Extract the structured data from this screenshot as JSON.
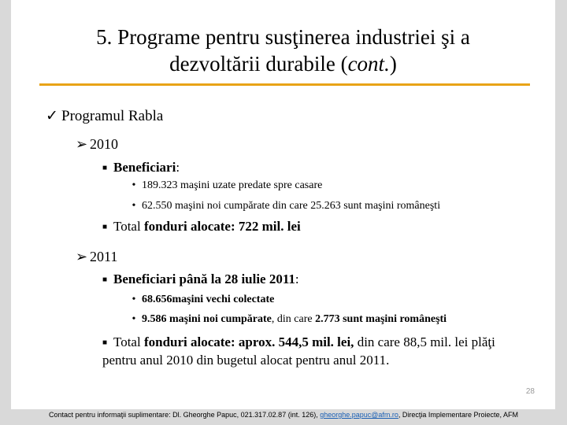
{
  "title_line1": "5. Programe pentru susţinerea industriei şi a",
  "title_line2_a": "dezvoltării durabile (",
  "title_line2_b": "cont.",
  "title_line2_c": ")",
  "program": "Programul Rabla",
  "y2010": {
    "year": "2010",
    "benef_label": "Beneficiari",
    "benef_colon": ":",
    "items": [
      "189.323 maşini uzate predate spre casare",
      "62.550 maşini noi cumpărate din care 25.263  sunt maşini româneşti"
    ],
    "funds_prefix": "Total ",
    "funds_bold": "fonduri alocate: 722 mil. lei"
  },
  "y2011": {
    "year": "2011",
    "benef_label": "Beneficiari până la 28 iulie 2011",
    "benef_colon": ":",
    "item1": "68.656maşini vechi colectate",
    "item2_bold": "9.586 maşini noi cumpărate",
    "item2_mid": ", din care ",
    "item2_tail": "2.773 sunt maşini româneşti",
    "funds_prefix": "Total ",
    "funds_bold": "fonduri alocate: aprox. 544,5 mil. lei,",
    "funds_rest": " din care 88,5 mil. lei plăţi pentru anul 2010 din bugetul alocat pentru anul 2011."
  },
  "page_number": "28",
  "footer": {
    "text_before": "Contact pentru informaţii suplimentare: Dl. Gheorghe Papuc, 021.317.02.87 (int. 126), ",
    "email": "gheorghe.papuc@afm.ro",
    "text_after": ", Direcţia Implementare Proiecte, AFM"
  },
  "icons": {
    "check": "checkmark-icon",
    "arrow": "arrow-bullet-icon",
    "square": "square-bullet-icon",
    "dot": "dot-bullet-icon"
  },
  "colors": {
    "accent_rule": "#e8a317",
    "background": "#d9d9d9",
    "link": "#1a5fb4"
  }
}
